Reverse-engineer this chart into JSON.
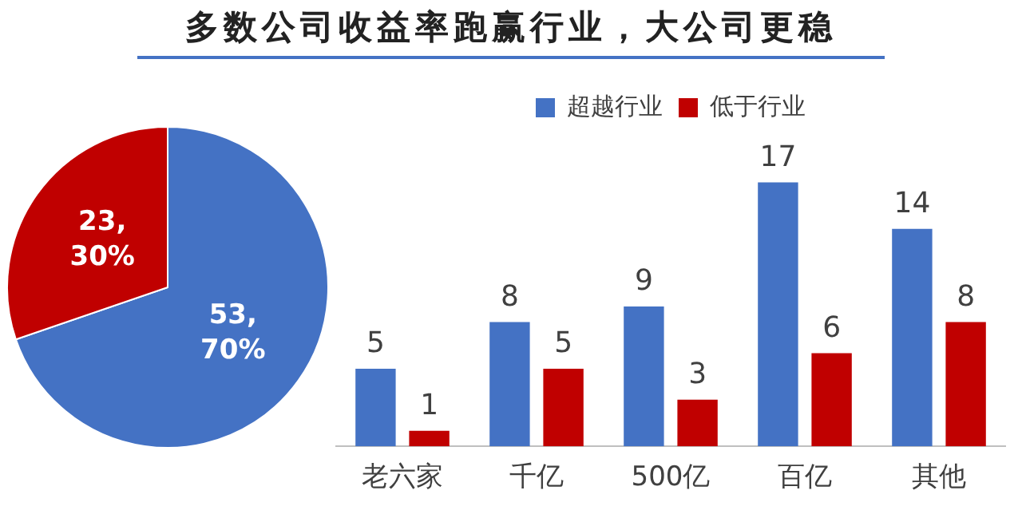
{
  "chart_data": [
    {
      "type": "pie",
      "title": "多数公司收益率跑赢行业，大公司更稳",
      "categories": [
        null,
        null
      ],
      "values": [
        53,
        23
      ],
      "colors": [
        "#4472c4",
        "#c00000"
      ],
      "value_labels": [
        "53, 70%",
        "23, 30%"
      ],
      "legend": false
    },
    {
      "type": "bar",
      "categories": [
        "老六家",
        "千亿",
        "500亿",
        "百亿",
        "其他"
      ],
      "series": [
        {
          "name": "超越行业",
          "color": "#4472c4",
          "values": [
            5,
            8,
            9,
            17,
            14
          ]
        },
        {
          "name": "低于行业",
          "color": "#c00000",
          "values": [
            1,
            5,
            3,
            6,
            8
          ]
        }
      ],
      "data_labels": true,
      "legend": "top",
      "grid": false
    }
  ]
}
